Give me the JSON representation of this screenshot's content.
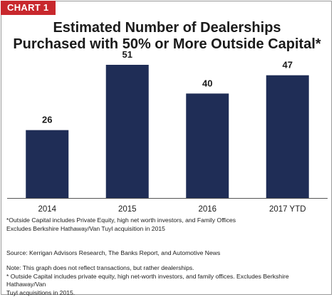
{
  "badge": "CHART 1",
  "title_lines": [
    "Estimated Number of Dealerships",
    "Purchased with 50% or More Outside Capital*"
  ],
  "colors": {
    "bar": "#1f2d56",
    "badge": "#c8282d",
    "axis": "#555555"
  },
  "chart_data": {
    "type": "bar",
    "title": "Estimated Number of Dealerships Purchased with 50% or More Outside Capital*",
    "categories": [
      "2014",
      "2015",
      "2016",
      "2017 YTD"
    ],
    "values": [
      26,
      51,
      40,
      47
    ],
    "data_labels": [
      "26",
      "51",
      "40",
      "47"
    ],
    "xlabel": "",
    "ylabel": "",
    "ylim": [
      0,
      60
    ],
    "grid": false,
    "legend": "none"
  },
  "chart_footnote_lines": [
    "*Outside Capital includes Private Equity, high net worth investors, and Family Offices",
    "Excludes Berkshire Hathaway/Van Tuyl acquisition in 2015"
  ],
  "source": "Source: Kerrigan Advisors Research, The Banks Report, and Automotive News",
  "note_lines": [
    "Note: This graph does not reflect transactions, but rather dealerships.",
    "* Outside Capital includes private equity, high net-worth investors, and family offices. Excludes Berkshire Hathaway/Van",
    "Tuyl acquisitions in 2015."
  ]
}
